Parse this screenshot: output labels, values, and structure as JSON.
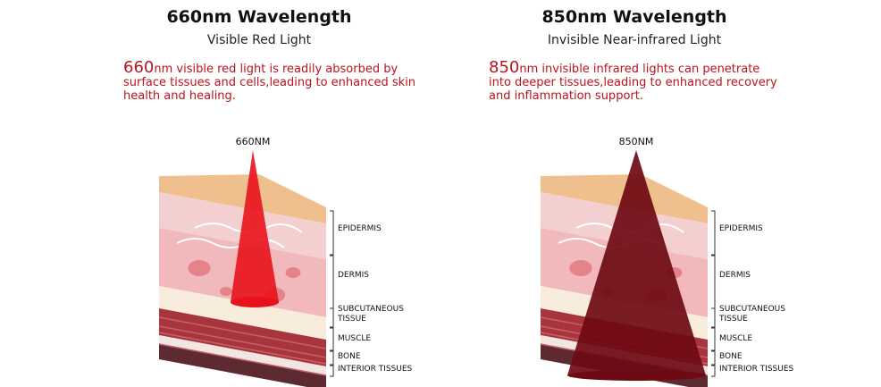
{
  "panels": [
    {
      "title": "660nm Wavelength",
      "subtitle": "Visible Red Light",
      "description": {
        "highlight": "660",
        "text": "nm visible red light is readily absorbed by surface tissues and cells,leading to enhanced skin health and healing."
      },
      "beam_label": "660NM",
      "layers": [
        {
          "lines": [
            "EPIDERMIS"
          ]
        },
        {
          "lines": [
            "DERMIS"
          ]
        },
        {
          "lines": [
            "SUBCUTANEOUS",
            "TISSUE"
          ]
        },
        {
          "lines": [
            "MUSCLE"
          ]
        },
        {
          "lines": [
            "BONE"
          ]
        },
        {
          "lines": [
            "INTERIOR TISSUES"
          ]
        }
      ]
    },
    {
      "title": "850nm Wavelength",
      "subtitle": "Invisible Near-infrared Light",
      "description": {
        "highlight": "850",
        "text": "nm invisible infrared lights can penetrate into deeper tissues,leading to enhanced recovery and inflammation support."
      },
      "beam_label": "850NM",
      "layers": [
        {
          "lines": [
            "EPIDERMIS"
          ]
        },
        {
          "lines": [
            "DERMIS"
          ]
        },
        {
          "lines": [
            "SUBCUTANEOUS",
            "TISSUE"
          ]
        },
        {
          "lines": [
            "MUSCLE"
          ]
        },
        {
          "lines": [
            "BONE"
          ]
        },
        {
          "lines": [
            "INTERIOR TISSUES"
          ]
        }
      ]
    }
  ]
}
